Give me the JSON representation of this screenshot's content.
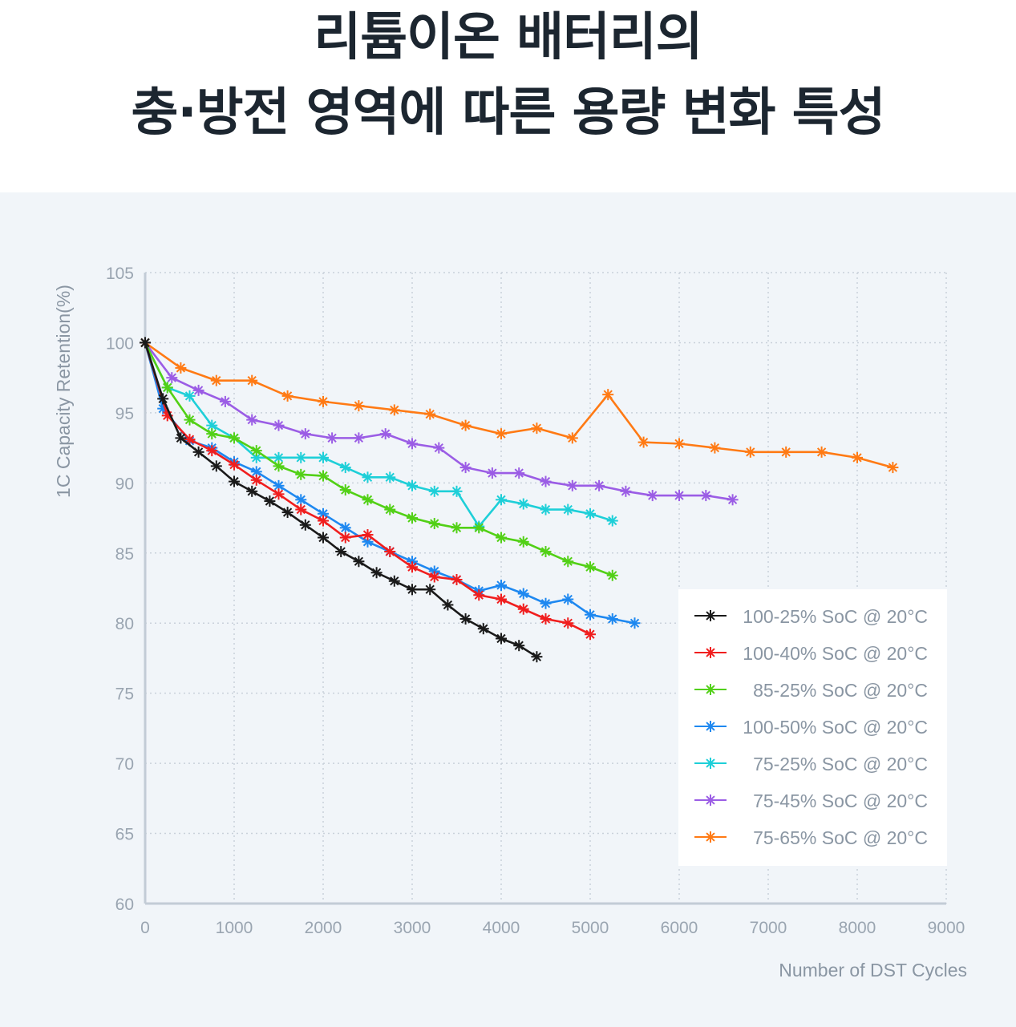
{
  "title": {
    "line1": "리튬이온 배터리의",
    "line2": "충·방전 영역에 따른 용량 변화 특성"
  },
  "chart_data": {
    "type": "line",
    "xlabel": "Number of DST Cycles",
    "ylabel": "1C Capacity Retention(%)",
    "xlim": [
      0,
      9000
    ],
    "ylim": [
      60,
      105
    ],
    "xticks": [
      0,
      1000,
      2000,
      3000,
      4000,
      5000,
      6000,
      7000,
      8000,
      9000
    ],
    "yticks": [
      60,
      65,
      70,
      75,
      80,
      85,
      90,
      95,
      100,
      105
    ],
    "grid": true,
    "legend_position": "bottom-right",
    "marker": "asterisk",
    "series": [
      {
        "name": "100-25%  SoC @ 20°C",
        "color": "#1a1a1a",
        "x": [
          0,
          200,
          400,
          600,
          800,
          1000,
          1200,
          1400,
          1600,
          1800,
          2000,
          2200,
          2400,
          2600,
          2800,
          3000,
          3200,
          3400,
          3600,
          3800,
          4000,
          4200,
          4400
        ],
        "y": [
          100,
          96.0,
          93.2,
          92.2,
          91.2,
          90.1,
          89.4,
          88.7,
          87.9,
          87.0,
          86.1,
          85.1,
          84.4,
          83.6,
          83.0,
          82.4,
          82.4,
          81.3,
          80.3,
          79.6,
          78.9,
          78.4,
          77.6
        ]
      },
      {
        "name": "100-40%  SoC @ 20°C",
        "color": "#f01e1e",
        "x": [
          0,
          250,
          500,
          750,
          1000,
          1250,
          1500,
          1750,
          2000,
          2250,
          2500,
          2750,
          3000,
          3250,
          3500,
          3750,
          4000,
          4250,
          4500,
          4750,
          5000
        ],
        "y": [
          100,
          94.8,
          93.1,
          92.3,
          91.3,
          90.2,
          89.2,
          88.1,
          87.3,
          86.1,
          86.3,
          85.1,
          84.0,
          83.3,
          83.1,
          82.0,
          81.7,
          81.0,
          80.3,
          80.0,
          79.2
        ]
      },
      {
        "name": "85-25%  SoC @ 20°C",
        "color": "#52d016",
        "x": [
          0,
          250,
          500,
          750,
          1000,
          1250,
          1500,
          1750,
          2000,
          2250,
          2500,
          2750,
          3000,
          3250,
          3500,
          3750,
          4000,
          4250,
          4500,
          4750,
          5000,
          5250
        ],
        "y": [
          100,
          96.8,
          94.5,
          93.5,
          93.2,
          92.3,
          91.2,
          90.6,
          90.5,
          89.5,
          88.8,
          88.1,
          87.5,
          87.1,
          86.8,
          86.8,
          86.1,
          85.8,
          85.1,
          84.4,
          84.0,
          83.4
        ]
      },
      {
        "name": "100-50%  SoC @ 20°C",
        "color": "#1e88f0",
        "x": [
          0,
          200,
          500,
          750,
          1000,
          1250,
          1500,
          1750,
          2000,
          2250,
          2500,
          2750,
          3000,
          3250,
          3500,
          3750,
          4000,
          4250,
          4500,
          4750,
          5000,
          5250,
          5500
        ],
        "y": [
          100,
          95.3,
          93.0,
          92.5,
          91.5,
          90.8,
          89.8,
          88.8,
          87.8,
          86.8,
          85.8,
          85.1,
          84.4,
          83.7,
          83.1,
          82.3,
          82.7,
          82.1,
          81.4,
          81.7,
          80.6,
          80.3,
          80.0
        ]
      },
      {
        "name": "75-25%  SoC @ 20°C",
        "color": "#1ecfd8",
        "x": [
          0,
          250,
          500,
          750,
          1000,
          1250,
          1500,
          1750,
          2000,
          2250,
          2500,
          2750,
          3000,
          3250,
          3500,
          3750,
          4000,
          4250,
          4500,
          4750,
          5000,
          5250
        ],
        "y": [
          100,
          96.8,
          96.2,
          94.1,
          93.2,
          91.8,
          91.8,
          91.8,
          91.8,
          91.1,
          90.4,
          90.4,
          89.8,
          89.4,
          89.4,
          86.9,
          88.8,
          88.5,
          88.1,
          88.1,
          87.8,
          87.3
        ]
      },
      {
        "name": "75-45%  SoC @ 20°C",
        "color": "#9b5de5",
        "x": [
          0,
          300,
          600,
          900,
          1200,
          1500,
          1800,
          2100,
          2400,
          2700,
          3000,
          3300,
          3600,
          3900,
          4200,
          4500,
          4800,
          5100,
          5400,
          5700,
          6000,
          6300,
          6600
        ],
        "y": [
          100,
          97.5,
          96.6,
          95.8,
          94.5,
          94.1,
          93.5,
          93.2,
          93.2,
          93.5,
          92.8,
          92.5,
          91.1,
          90.7,
          90.7,
          90.1,
          89.8,
          89.8,
          89.4,
          89.1,
          89.1,
          89.1,
          88.8
        ]
      },
      {
        "name": "75-65%  SoC @ 20°C",
        "color": "#ff7a14",
        "x": [
          0,
          400,
          800,
          1200,
          1600,
          2000,
          2400,
          2800,
          3200,
          3600,
          4000,
          4400,
          4800,
          5200,
          5600,
          6000,
          6400,
          6800,
          7200,
          7600,
          8000,
          8400
        ],
        "y": [
          100,
          98.2,
          97.3,
          97.3,
          96.2,
          95.8,
          95.5,
          95.2,
          94.9,
          94.1,
          93.5,
          93.9,
          93.2,
          96.3,
          92.9,
          92.8,
          92.5,
          92.2,
          92.2,
          92.2,
          91.8,
          91.1
        ]
      }
    ]
  }
}
